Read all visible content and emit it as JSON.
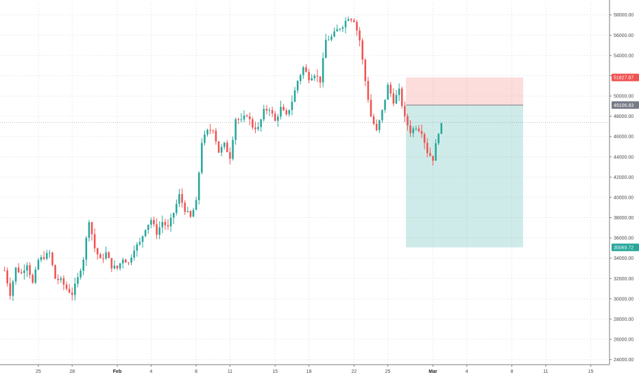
{
  "chart_data": {
    "type": "candlestick",
    "title": "",
    "xlabel": "",
    "ylabel": "",
    "ylim": [
      23500,
      59200
    ],
    "y_ticks": [
      24000,
      26000,
      28000,
      30000,
      32000,
      34000,
      36000,
      38000,
      40000,
      42000,
      44000,
      46000,
      48000,
      50000,
      52000,
      54000,
      56000,
      58000
    ],
    "y_tick_labels": [
      "24000.00",
      "26000.00",
      "28000.00",
      "30000.00",
      "32000.00",
      "34000.00",
      "36000.00",
      "38000.00",
      "40000.00",
      "42000.00",
      "44000.00",
      "46000.00",
      "48000.00",
      "50000.00",
      "52000.00",
      "54000.00",
      "56000.00",
      "58000.00"
    ],
    "x_ticks": [
      {
        "label": "25",
        "day": 3,
        "bold": false
      },
      {
        "label": "28",
        "day": 6,
        "bold": false
      },
      {
        "label": "Feb",
        "day": 10,
        "bold": true
      },
      {
        "label": "4",
        "day": 13,
        "bold": false
      },
      {
        "label": "8",
        "day": 17,
        "bold": false
      },
      {
        "label": "11",
        "day": 20,
        "bold": false
      },
      {
        "label": "15",
        "day": 24,
        "bold": false
      },
      {
        "label": "18",
        "day": 27,
        "bold": false
      },
      {
        "label": "22",
        "day": 31,
        "bold": false
      },
      {
        "label": "25",
        "day": 34,
        "bold": false
      },
      {
        "label": "Mar",
        "day": 38,
        "bold": true
      },
      {
        "label": "4",
        "day": 41,
        "bold": false
      },
      {
        "label": "8",
        "day": 45,
        "bold": false
      },
      {
        "label": "11",
        "day": 48,
        "bold": false
      },
      {
        "label": "15",
        "day": 52,
        "bold": false
      }
    ],
    "grid": true,
    "legend": "none",
    "x_range_days": [
      -0.4,
      53.6
    ],
    "price_keypoints": [
      [
        0,
        32800
      ],
      [
        0.5,
        30500
      ],
      [
        1,
        33000
      ],
      [
        1.5,
        32500
      ],
      [
        2,
        33500
      ],
      [
        2.5,
        31500
      ],
      [
        3,
        33800
      ],
      [
        4,
        34500
      ],
      [
        4.5,
        32000
      ],
      [
        5,
        31800
      ],
      [
        5.5,
        31000
      ],
      [
        6,
        30500
      ],
      [
        6.5,
        32000
      ],
      [
        7,
        34000
      ],
      [
        7.5,
        37800
      ],
      [
        8,
        35000
      ],
      [
        8.5,
        33800
      ],
      [
        9,
        34500
      ],
      [
        9.5,
        33200
      ],
      [
        10,
        33000
      ],
      [
        10.5,
        34000
      ],
      [
        11,
        33500
      ],
      [
        11.5,
        35000
      ],
      [
        12,
        35500
      ],
      [
        12.5,
        37000
      ],
      [
        13,
        37800
      ],
      [
        13.5,
        36500
      ],
      [
        14,
        37600
      ],
      [
        14.5,
        37000
      ],
      [
        15,
        38500
      ],
      [
        15.5,
        40200
      ],
      [
        16,
        38800
      ],
      [
        16.5,
        38000
      ],
      [
        17,
        39500
      ],
      [
        17.5,
        45500
      ],
      [
        18,
        46500
      ],
      [
        18.5,
        46800
      ],
      [
        19,
        44500
      ],
      [
        19.5,
        45200
      ],
      [
        20,
        44000
      ],
      [
        20.5,
        47800
      ],
      [
        21,
        47500
      ],
      [
        21.5,
        48200
      ],
      [
        22,
        47000
      ],
      [
        22.5,
        46800
      ],
      [
        23,
        48500
      ],
      [
        23.5,
        48800
      ],
      [
        24,
        47500
      ],
      [
        24.5,
        48800
      ],
      [
        25,
        48000
      ],
      [
        25.5,
        49500
      ],
      [
        26,
        51500
      ],
      [
        26.5,
        52800
      ],
      [
        27,
        51800
      ],
      [
        27.5,
        52200
      ],
      [
        28,
        51500
      ],
      [
        28.5,
        55500
      ],
      [
        29,
        55800
      ],
      [
        29.5,
        56500
      ],
      [
        30,
        57000
      ],
      [
        30.5,
        57800
      ],
      [
        31,
        57500
      ],
      [
        31.5,
        55500
      ],
      [
        32,
        51500
      ],
      [
        32.5,
        48000
      ],
      [
        33,
        46500
      ],
      [
        33.5,
        48500
      ],
      [
        34,
        51000
      ],
      [
        34.5,
        49500
      ],
      [
        35,
        50500
      ],
      [
        35.5,
        47800
      ],
      [
        36,
        46500
      ],
      [
        36.5,
        47000
      ],
      [
        37,
        46500
      ],
      [
        37.5,
        44500
      ],
      [
        38,
        43800
      ],
      [
        38.5,
        46500
      ],
      [
        38.8,
        47200
      ]
    ],
    "position_tool": {
      "start_day": 35.6,
      "end_day": 46.0,
      "entry": 49106.83,
      "stop": 51827.87,
      "target": 35069.72
    },
    "price_levels": [
      {
        "value": 51827.87,
        "label": "51827.87",
        "color": "#ef5350"
      },
      {
        "value": 49106.83,
        "label": "49106.83",
        "color": "#787b86"
      },
      {
        "value": 35069.72,
        "label": "35069.72",
        "color": "#26a69a"
      }
    ],
    "current_price_line": 47400,
    "colors": {
      "up": "#26a69a",
      "down": "#ef5350",
      "stop_zone": "rgba(239,83,80,0.20)",
      "target_zone": "rgba(38,166,154,0.22)",
      "grid": "#e9ebef",
      "axis": "#7a7a7a"
    }
  }
}
